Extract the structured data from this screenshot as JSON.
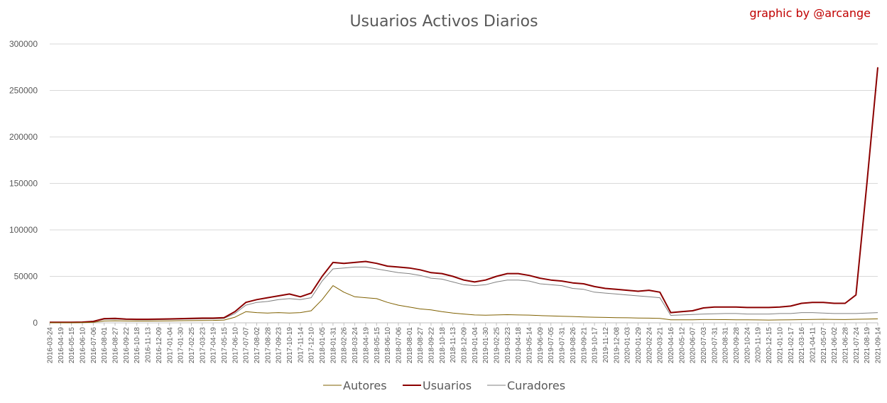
{
  "chart_data": {
    "type": "line",
    "title": "Usuarios Activos Diarios",
    "credit": "graphic by @arcange",
    "ylim": [
      0,
      300000
    ],
    "yticks": [
      "0",
      "50000",
      "100000",
      "150000",
      "200000",
      "250000",
      "300000"
    ],
    "grid": true,
    "legend_position": "bottom",
    "x_tick_labels": [
      "2016-03-24",
      "2016-04-19",
      "2016-05-15",
      "2016-06-10",
      "2016-07-06",
      "2016-08-01",
      "2016-08-27",
      "2016-09-22",
      "2016-10-18",
      "2016-11-13",
      "2016-12-09",
      "2017-01-04",
      "2017-01-30",
      "2017-02-25",
      "2017-03-23",
      "2017-04-19",
      "2017-05-15",
      "2017-06-10",
      "2017-07-07",
      "2017-08-02",
      "2017-08-28",
      "2017-09-23",
      "2017-10-19",
      "2017-11-14",
      "2017-12-10",
      "2018-01-05",
      "2018-01-31",
      "2018-02-26",
      "2018-03-24",
      "2018-04-19",
      "2018-05-15",
      "2018-06-10",
      "2018-07-06",
      "2018-08-01",
      "2018-08-27",
      "2018-09-22",
      "2018-10-18",
      "2018-11-13",
      "2018-12-09",
      "2019-01-04",
      "2019-01-30",
      "2019-02-25",
      "2019-03-23",
      "2019-04-18",
      "2019-05-14",
      "2019-06-09",
      "2019-07-05",
      "2019-07-31",
      "2019-08-26",
      "2019-09-21",
      "2019-10-17",
      "2019-11-12",
      "2019-12-08",
      "2020-01-03",
      "2020-01-29",
      "2020-02-24",
      "2020-03-21",
      "2020-04-16",
      "2020-05-12",
      "2020-06-07",
      "2020-07-03",
      "2020-07-31",
      "2020-08-31",
      "2020-09-28",
      "2020-10-24",
      "2020-11-19",
      "2020-12-15",
      "2021-01-10",
      "2021-02-17",
      "2021-03-16",
      "2021-04-11",
      "2021-05-07",
      "2021-06-02",
      "2021-06-28",
      "2021-07-24",
      "2021-08-19",
      "2021-09-14"
    ],
    "series": [
      {
        "name": "Autores",
        "color": "#7f6000",
        "values": [
          0,
          0,
          0,
          200,
          500,
          2000,
          2200,
          2000,
          1900,
          1900,
          2000,
          2100,
          2300,
          2400,
          2500,
          2600,
          3000,
          6000,
          12000,
          11000,
          10500,
          11000,
          10500,
          11000,
          13000,
          25000,
          40000,
          33000,
          28000,
          27000,
          26000,
          22000,
          19000,
          17000,
          15000,
          14000,
          12000,
          10500,
          9500,
          8500,
          8200,
          8500,
          8800,
          8500,
          8300,
          7800,
          7500,
          7000,
          6800,
          6300,
          6000,
          5800,
          5600,
          5400,
          5200,
          5000,
          4800,
          3200,
          3200,
          3300,
          3500,
          3500,
          3400,
          3300,
          3200,
          3100,
          3000,
          3100,
          3200,
          3400,
          3600,
          3800,
          3700,
          3500,
          3800,
          4000,
          4300
        ]
      },
      {
        "name": "Usuarios",
        "color": "#8b0000",
        "values": [
          500,
          500,
          600,
          800,
          1500,
          4500,
          4800,
          4000,
          3800,
          3800,
          4000,
          4200,
          4500,
          4800,
          5000,
          5000,
          5500,
          12000,
          22000,
          25000,
          27000,
          29000,
          31000,
          28000,
          32000,
          50000,
          65000,
          64000,
          65000,
          66000,
          64000,
          61000,
          60000,
          59000,
          57000,
          54000,
          53000,
          50000,
          46000,
          44000,
          46000,
          50000,
          53000,
          53000,
          51000,
          48000,
          46000,
          45000,
          43000,
          42000,
          39000,
          37000,
          36000,
          35000,
          34000,
          35000,
          33000,
          11000,
          12000,
          13000,
          16000,
          17000,
          17000,
          17000,
          16500,
          16500,
          16500,
          17000,
          18000,
          21000,
          22000,
          22000,
          21000,
          21000,
          30000,
          150000,
          275000
        ]
      },
      {
        "name": "Curadores",
        "color": "#808080",
        "values": [
          300,
          300,
          400,
          600,
          1200,
          3800,
          4000,
          3500,
          3200,
          3200,
          3400,
          3600,
          3900,
          4100,
          4300,
          4300,
          4800,
          10000,
          19000,
          22000,
          23000,
          25000,
          26000,
          25000,
          27000,
          45000,
          58000,
          59000,
          60000,
          60000,
          58000,
          56000,
          54000,
          53000,
          51000,
          48000,
          47000,
          44000,
          41000,
          40000,
          41000,
          44000,
          46000,
          46000,
          45000,
          42000,
          41000,
          40000,
          37000,
          36000,
          33000,
          32000,
          31000,
          30000,
          29000,
          28000,
          27000,
          8000,
          8500,
          9000,
          9500,
          9800,
          10000,
          10000,
          9500,
          9500,
          9500,
          10000,
          10000,
          11000,
          11000,
          10500,
          10000,
          10000,
          10000,
          10500,
          11000
        ]
      }
    ]
  }
}
